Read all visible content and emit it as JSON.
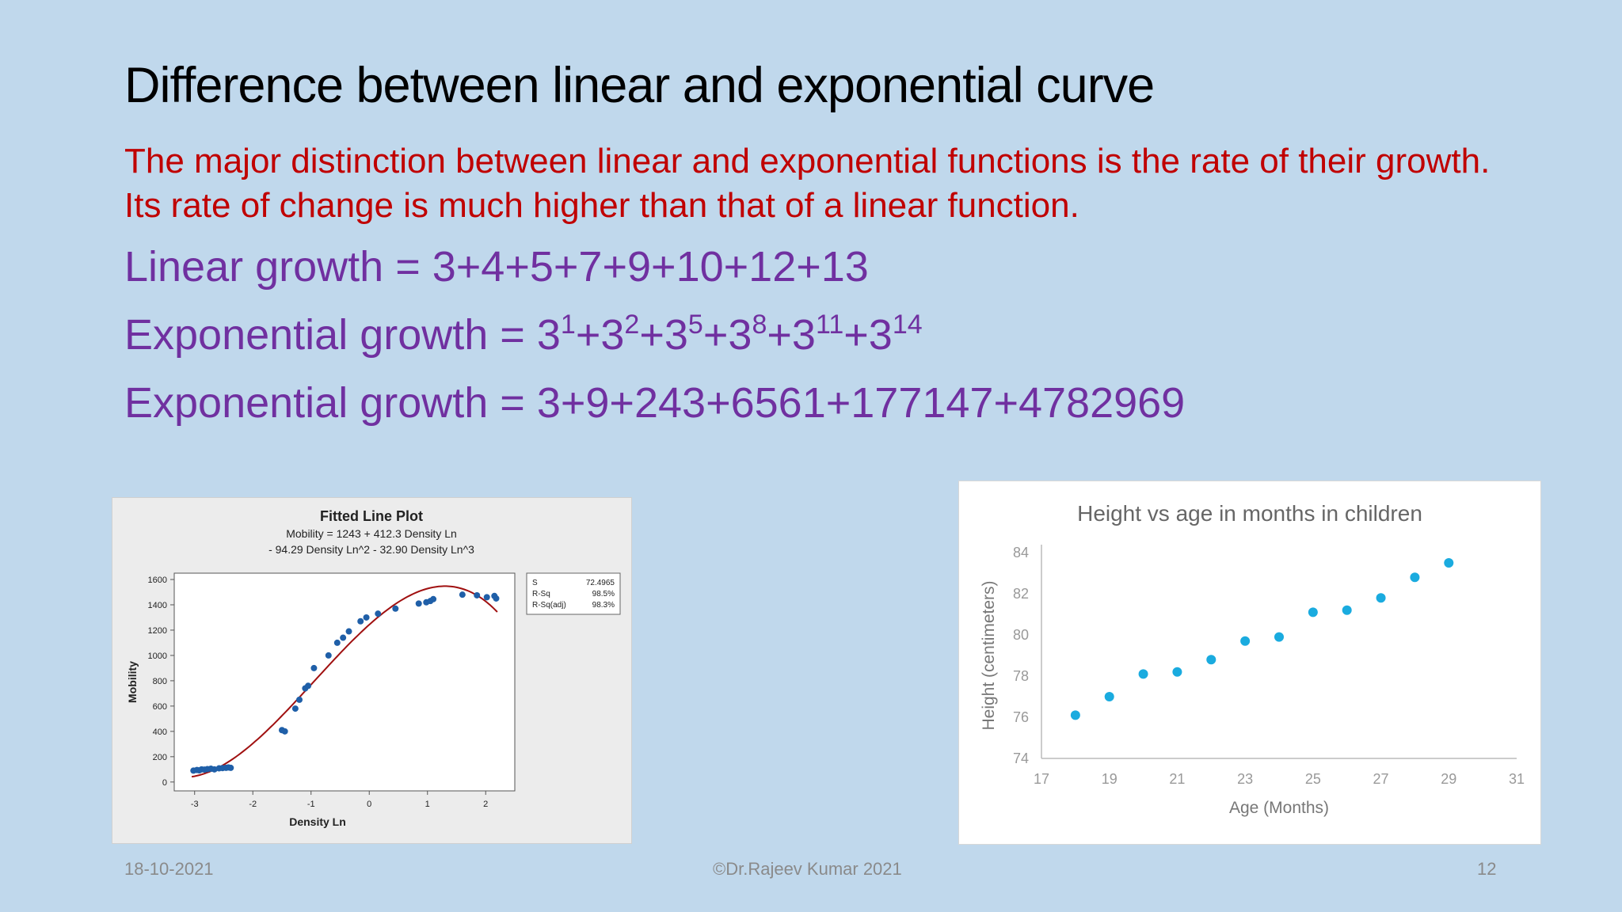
{
  "slide": {
    "title": "Difference between linear and exponential curve",
    "intro": "The major distinction between linear and exponential functions is the rate of their growth.  Its rate of change is much higher than that of a linear function.",
    "formula_linear": "Linear growth = 3+4+5+7+9+10+12+13",
    "formula_exp_label": "Exponential growth = ",
    "formula_exp_base": "3",
    "formula_exp_exponents": [
      "1",
      "2",
      "5",
      "8",
      "11",
      "14"
    ],
    "formula_exp_values": "Exponential growth = 3+9+243+6561+177147+4782969"
  },
  "footer": {
    "date": "18-10-2021",
    "copyright": "©Dr.Rajeev Kumar 2021",
    "page": "12"
  },
  "colors": {
    "background": "#c0d8ec",
    "title": "#000000",
    "intro": "#c00000",
    "formula": "#7030a0",
    "left_points": "#1f5fa8",
    "left_fit": "#a01010",
    "right_points": "#1aabdf"
  },
  "chart_data": [
    {
      "type": "scatter",
      "title": "Fitted Line Plot",
      "subtitle_lines": [
        "Mobility = 1243 + 412.3 Density Ln",
        "- 94.29 Density Ln^2 - 32.90 Density Ln^3"
      ],
      "xlabel": "Density Ln",
      "ylabel": "Mobility",
      "xlim": [
        -3.35,
        2.5
      ],
      "ylim": [
        -70,
        1650
      ],
      "x_ticks": [
        -3,
        -2,
        -1,
        0,
        1,
        2
      ],
      "y_ticks": [
        0,
        200,
        400,
        600,
        800,
        1000,
        1200,
        1400,
        1600
      ],
      "fit": {
        "name": "cubic",
        "coefficients": [
          1243,
          412.3,
          -94.29,
          -32.9
        ],
        "x_range": [
          -3.05,
          2.2
        ]
      },
      "stats": [
        {
          "label": "S",
          "value": "72.4965"
        },
        {
          "label": "R-Sq",
          "value": "98.5%"
        },
        {
          "label": "R-Sq(adj)",
          "value": "98.3%"
        }
      ],
      "points": [
        [
          -3.02,
          90
        ],
        [
          -2.96,
          95
        ],
        [
          -2.92,
          92
        ],
        [
          -2.88,
          100
        ],
        [
          -2.83,
          98
        ],
        [
          -2.78,
          102
        ],
        [
          -2.72,
          105
        ],
        [
          -2.66,
          100
        ],
        [
          -2.58,
          108
        ],
        [
          -2.52,
          110
        ],
        [
          -2.46,
          112
        ],
        [
          -2.42,
          115
        ],
        [
          -2.38,
          112
        ],
        [
          -1.5,
          410
        ],
        [
          -1.45,
          400
        ],
        [
          -1.27,
          580
        ],
        [
          -1.2,
          650
        ],
        [
          -1.1,
          740
        ],
        [
          -1.05,
          760
        ],
        [
          -0.95,
          900
        ],
        [
          -0.7,
          1000
        ],
        [
          -0.55,
          1100
        ],
        [
          -0.45,
          1140
        ],
        [
          -0.35,
          1190
        ],
        [
          -0.15,
          1270
        ],
        [
          -0.05,
          1300
        ],
        [
          0.15,
          1330
        ],
        [
          0.45,
          1370
        ],
        [
          0.85,
          1410
        ],
        [
          0.98,
          1420
        ],
        [
          1.05,
          1430
        ],
        [
          1.1,
          1445
        ],
        [
          1.6,
          1480
        ],
        [
          1.85,
          1475
        ],
        [
          2.02,
          1460
        ],
        [
          2.15,
          1470
        ],
        [
          2.18,
          1450
        ]
      ]
    },
    {
      "type": "scatter",
      "title": "Height vs age in months in children",
      "xlabel": "Age (Months)",
      "ylabel": "Height (centimeters)",
      "xlim": [
        17,
        31
      ],
      "ylim": [
        74,
        84
      ],
      "x_ticks": [
        17,
        19,
        21,
        23,
        25,
        27,
        29,
        31
      ],
      "y_ticks": [
        74,
        76,
        78,
        80,
        82,
        84
      ],
      "grid": false,
      "points": [
        [
          18,
          76.1
        ],
        [
          19,
          77
        ],
        [
          20,
          78.1
        ],
        [
          21,
          78.2
        ],
        [
          22,
          78.8
        ],
        [
          23,
          79.7
        ],
        [
          24,
          79.9
        ],
        [
          25,
          81.1
        ],
        [
          26,
          81.2
        ],
        [
          27,
          81.8
        ],
        [
          28,
          82.8
        ],
        [
          29,
          83.5
        ]
      ]
    }
  ]
}
